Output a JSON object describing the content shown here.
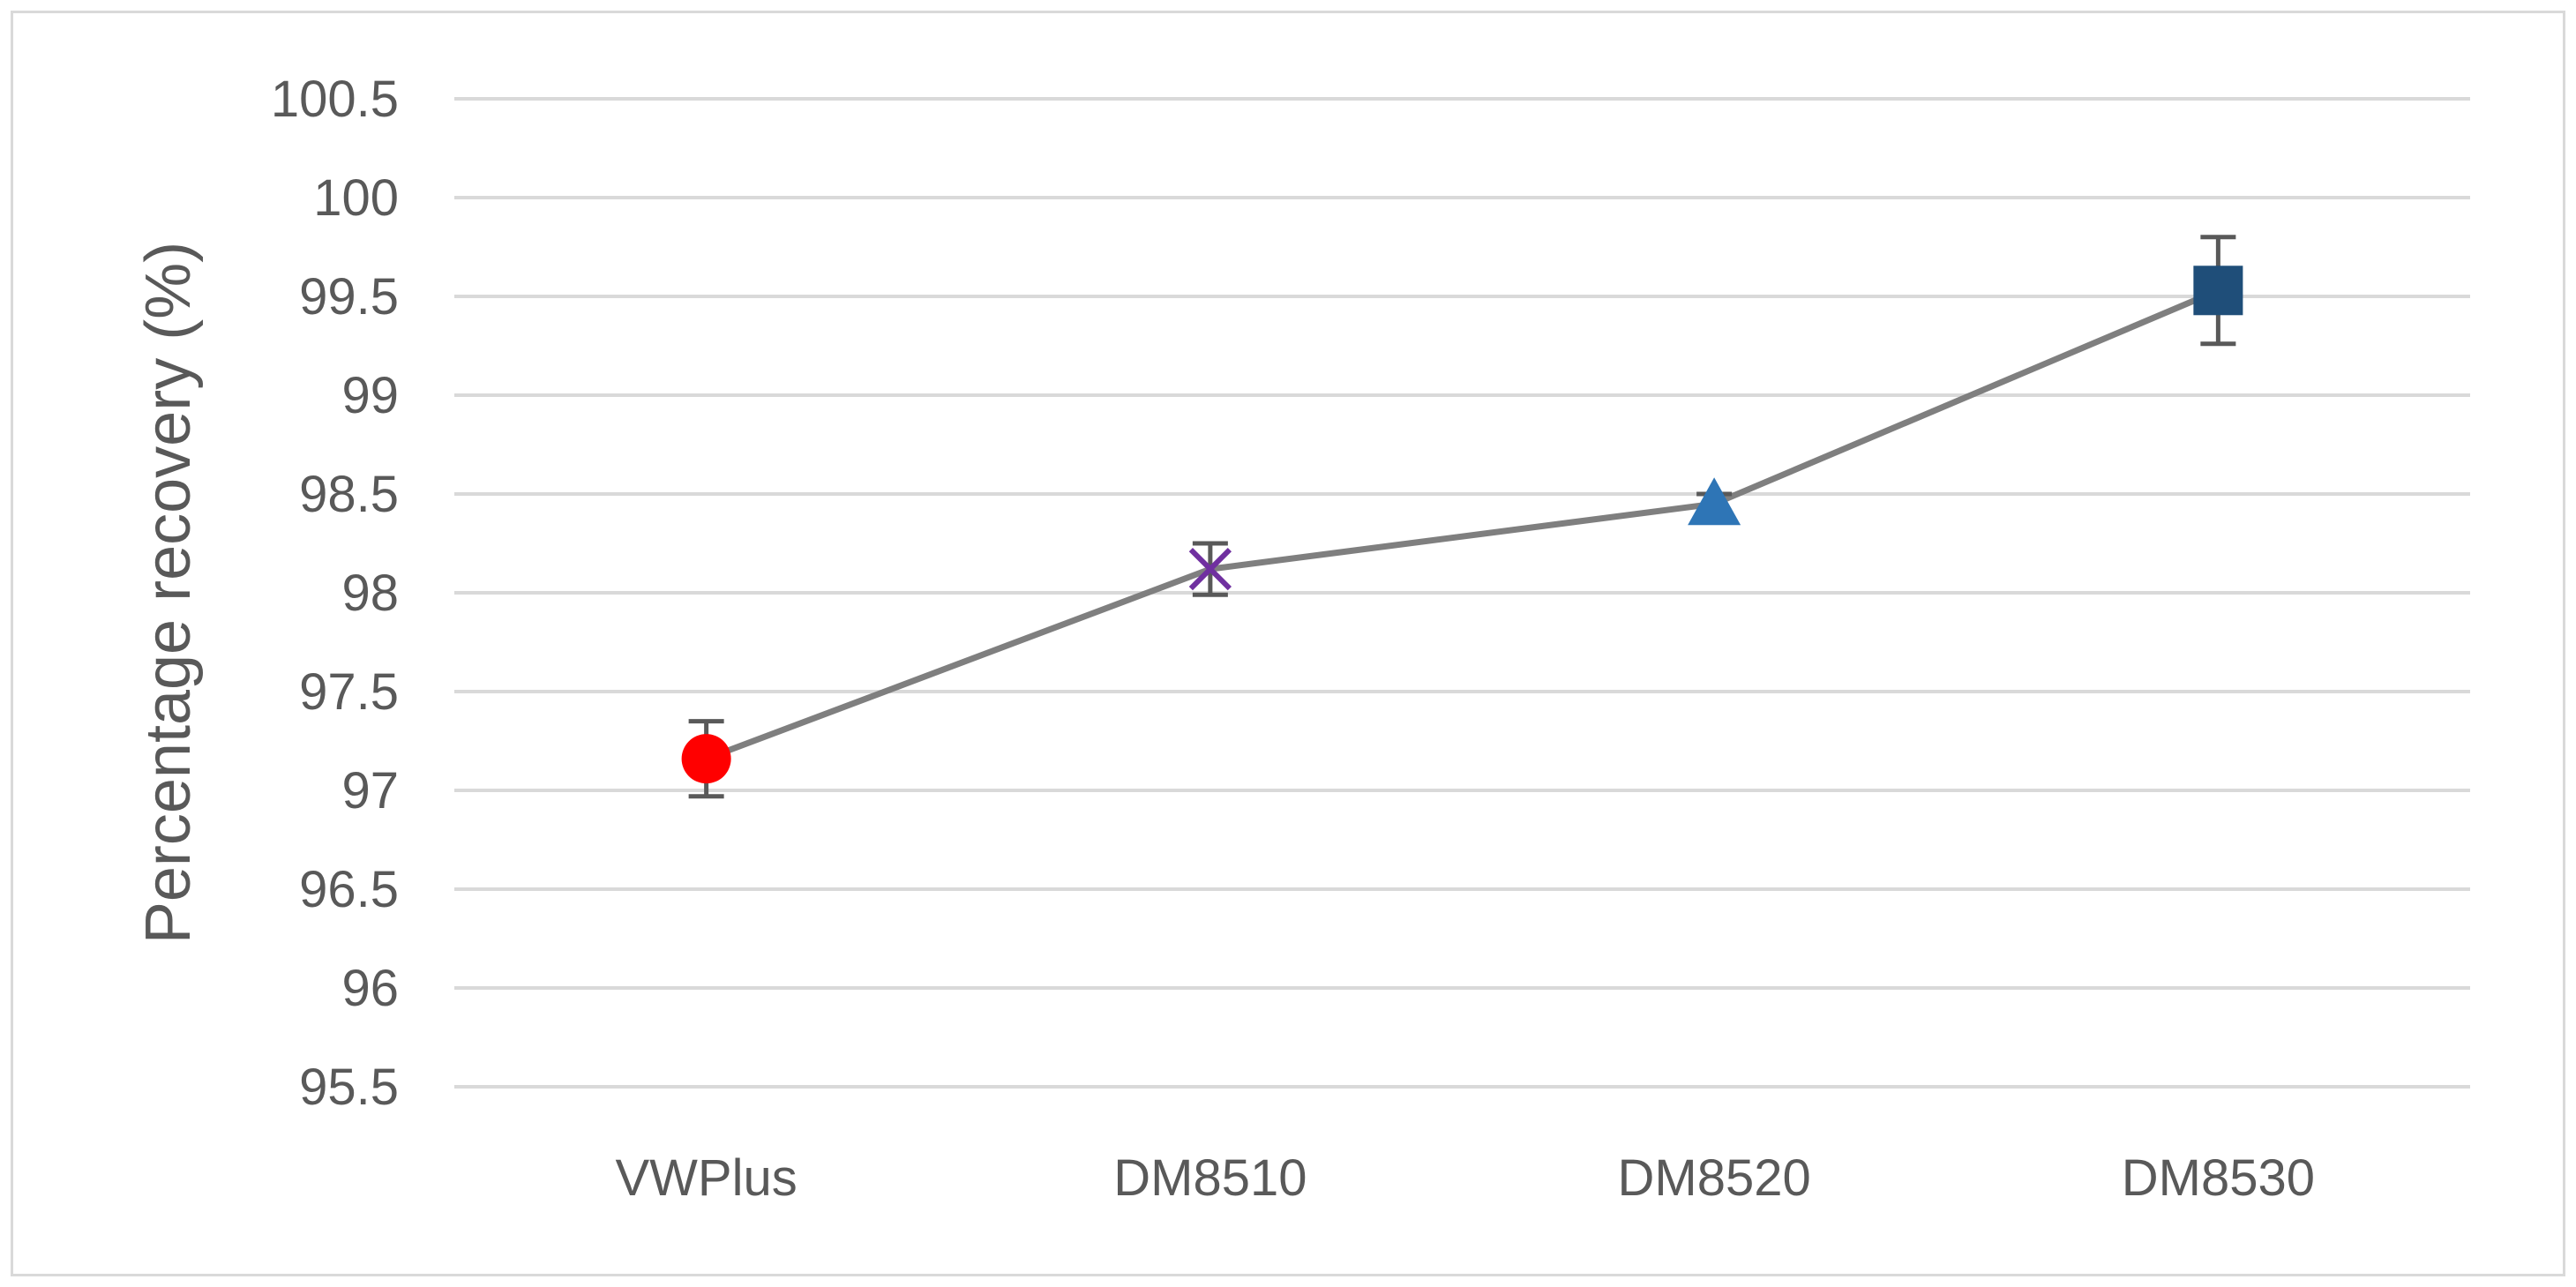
{
  "chart_data": {
    "type": "line",
    "categories": [
      "VWPlus",
      "DM8510",
      "DM8520",
      "DM8530"
    ],
    "series": [
      {
        "values": [
          97.16,
          98.12,
          98.45,
          99.53
        ],
        "error": [
          0.19,
          0.13,
          0.05,
          0.27
        ],
        "markers": [
          "circle",
          "x",
          "triangle",
          "square"
        ],
        "marker_colors": [
          "#ff0000",
          "#7030a0",
          "#2e75b6",
          "#1f4e79"
        ],
        "line_color": "#7f7f7f"
      }
    ],
    "ylabel": "Percentage recovery (%)",
    "xlabel": "",
    "ylim": [
      95.5,
      100.5
    ],
    "yticks": [
      "95.5",
      "96",
      "96.5",
      "97",
      "97.5",
      "98",
      "98.5",
      "99",
      "99.5",
      "100",
      "100.5"
    ],
    "grid": true,
    "legend": "none",
    "colors": {
      "grid": "#d9d9d9",
      "text": "#595959",
      "errorbar": "#595959"
    }
  }
}
